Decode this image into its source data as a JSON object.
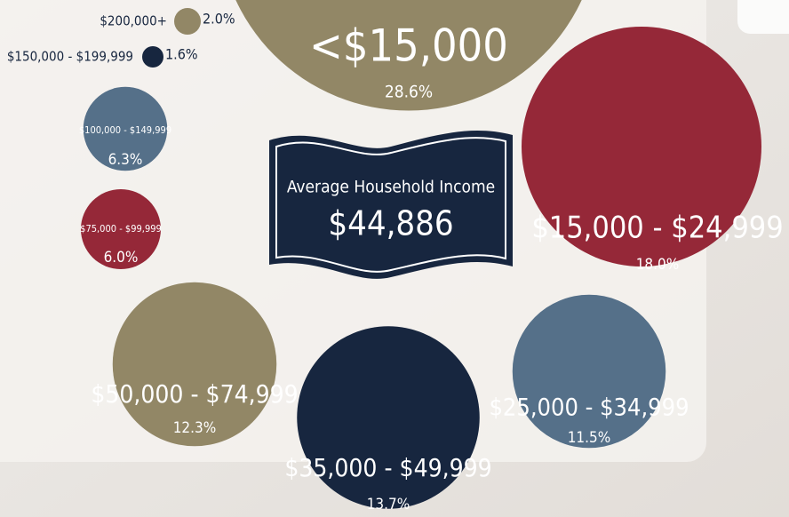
{
  "chart_data": {
    "type": "bubble",
    "categories": [
      "<$15,000",
      "$15,000 - $24,999",
      "$25,000 - $34,999",
      "$35,000 - $49,999",
      "$50,000 - $74,999",
      "$75,000 - $99,999",
      "$100,000 - $149,999",
      "$150,000 - $199,999",
      "$200,000+"
    ],
    "values": [
      28.6,
      18.0,
      11.5,
      13.7,
      12.3,
      6.0,
      6.3,
      1.6,
      2.0
    ],
    "value_labels": [
      "28.6%",
      "18.0%",
      "11.5%",
      "13.7%",
      "12.3%",
      "6.0%",
      "6.3%",
      "1.6%",
      "2.0%"
    ],
    "colors": [
      "#928766",
      "#952838",
      "#557089",
      "#17263f",
      "#928766",
      "#952838",
      "#557089",
      "#17263f",
      "#928766"
    ],
    "annotations": [
      "Average Household Income",
      "$44,886"
    ]
  }
}
